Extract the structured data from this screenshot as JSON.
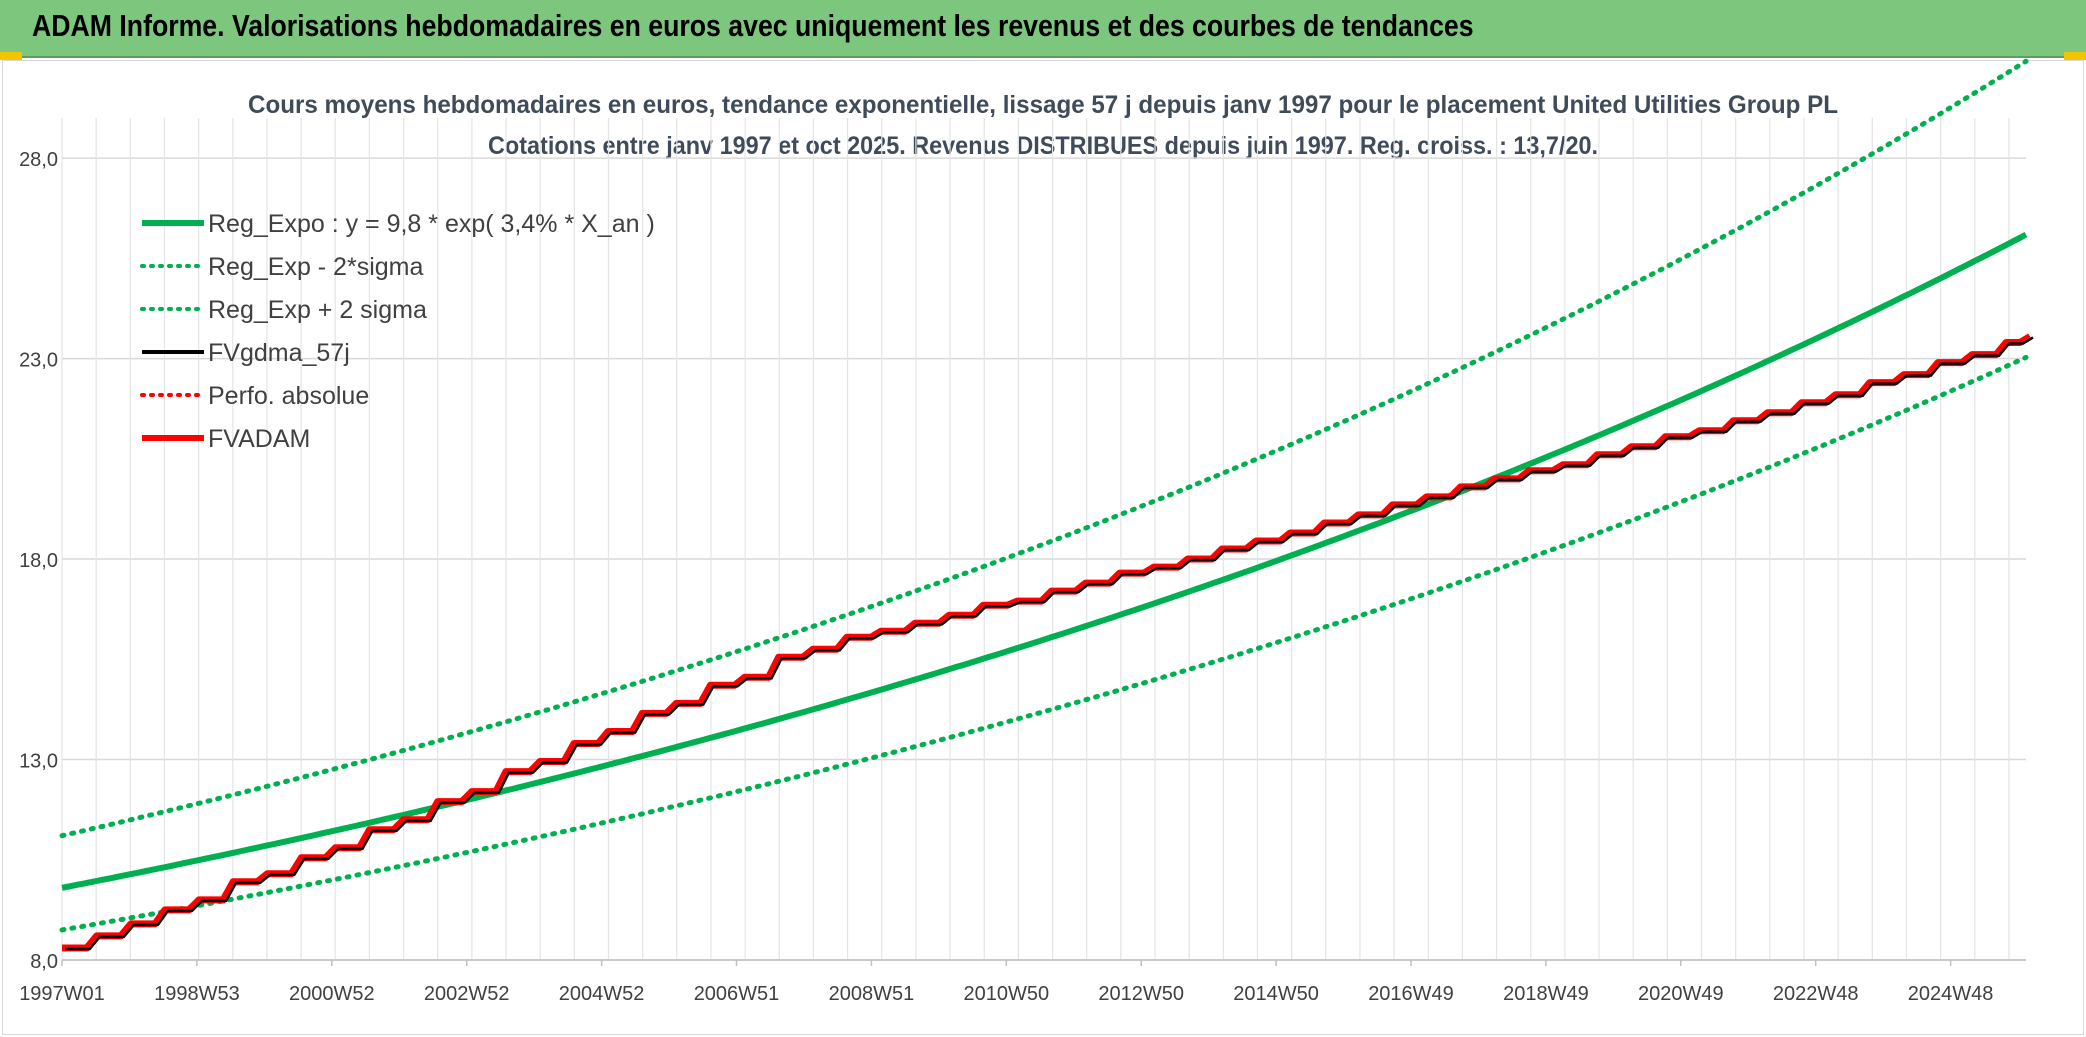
{
  "banner": {
    "title": "ADAM Informe. Valorisations hebdomadaires en euros avec uniquement les revenus et des courbes de tendances"
  },
  "colors": {
    "banner_bg": "#7dc67e",
    "trend_green": "#00b050",
    "fvgdma_black": "#000000",
    "adam_red": "#ff0000",
    "grid": "#d9d9d9"
  },
  "chart_data": {
    "type": "line",
    "title": "Cours moyens hebdomadaires en euros, tendance exponentielle, lissage 57 j depuis janv 1997 pour le placement United Utilities Group PL",
    "subtitle": "Cotations entre janv 1997 et oct 2025. Revenus DISTRIBUES depuis juin 1997. Reg. croiss. : 13,7/20.",
    "xlabel": "",
    "ylabel": "",
    "ylim": [
      8.0,
      29.0
    ],
    "y_ticks": [
      "8,0",
      "13,0",
      "18,0",
      "23,0",
      "28,0"
    ],
    "y_tick_values": [
      8,
      13,
      18,
      23,
      28
    ],
    "x_ticks": [
      "1997W01",
      "1998W53",
      "2000W52",
      "2002W52",
      "2004W52",
      "2006W51",
      "2008W51",
      "2010W50",
      "2012W50",
      "2014W50",
      "2016W49",
      "2018W49",
      "2020W49",
      "2022W48",
      "2024W48"
    ],
    "x_range_years": [
      1997.0,
      2025.8
    ],
    "grid": true,
    "legend_position": "top-left",
    "legend": [
      {
        "label": "Reg_Expo : y = 9,8 * exp( 3,4% *  X_an )",
        "style": "solid-thick",
        "color": "#00b050"
      },
      {
        "label": "Reg_Exp - 2*sigma",
        "style": "dotted",
        "color": "#00b050"
      },
      {
        "label": "Reg_Exp + 2 sigma",
        "style": "dotted",
        "color": "#00b050"
      },
      {
        "label": "FVgdma_57j",
        "style": "solid",
        "color": "#000000"
      },
      {
        "label": "Perfo. absolue",
        "style": "dotted",
        "color": "#ff0000"
      },
      {
        "label": "FVADAM",
        "style": "solid-thick",
        "color": "#ff0000"
      }
    ],
    "series": [
      {
        "name": "Reg_Expo : y = 9,8 * exp( 3,4% *  X_an )",
        "model": "exponential",
        "a": 9.8,
        "rate": 0.034
      },
      {
        "name": "Reg_Exp - 2*sigma",
        "model": "exponential",
        "a": 8.75,
        "rate": 0.0336
      },
      {
        "name": "Reg_Exp + 2 sigma",
        "model": "exponential",
        "a": 11.1,
        "rate": 0.035
      },
      {
        "name": "FVADAM",
        "x": [
          1997.0,
          1997.45,
          1997.95,
          1998.45,
          1998.95,
          1999.45,
          1999.95,
          2000.45,
          2000.95,
          2001.45,
          2001.95,
          2002.45,
          2002.95,
          2003.45,
          2003.95,
          2004.45,
          2004.95,
          2005.45,
          2005.95,
          2006.45,
          2006.95,
          2007.45,
          2007.95,
          2008.45,
          2008.95,
          2009.45,
          2009.95,
          2010.45,
          2010.95,
          2011.45,
          2011.95,
          2012.45,
          2012.95,
          2013.45,
          2013.95,
          2014.45,
          2014.95,
          2015.45,
          2015.95,
          2016.45,
          2016.95,
          2017.45,
          2017.95,
          2018.45,
          2018.95,
          2019.45,
          2019.95,
          2020.45,
          2020.95,
          2021.45,
          2021.95,
          2022.45,
          2022.95,
          2023.45,
          2023.95,
          2024.45,
          2024.95,
          2025.45,
          2025.8
        ],
        "y": [
          8.3,
          8.6,
          8.9,
          9.25,
          9.5,
          9.95,
          10.15,
          10.55,
          10.8,
          11.25,
          11.5,
          11.95,
          12.2,
          12.7,
          12.95,
          13.4,
          13.7,
          14.15,
          14.4,
          14.85,
          15.05,
          15.55,
          15.75,
          16.05,
          16.2,
          16.4,
          16.6,
          16.85,
          16.95,
          17.2,
          17.4,
          17.65,
          17.8,
          18.0,
          18.25,
          18.45,
          18.65,
          18.9,
          19.1,
          19.35,
          19.55,
          19.8,
          20.0,
          20.2,
          20.35,
          20.6,
          20.8,
          21.05,
          21.2,
          21.45,
          21.65,
          21.9,
          22.1,
          22.4,
          22.6,
          22.9,
          23.1,
          23.4,
          23.55
        ]
      },
      {
        "name": "FVgdma_57j",
        "note_shape": "smoothed FVADAM"
      },
      {
        "name": "Perfo. absolue",
        "note_shape": "close to FVADAM"
      }
    ]
  }
}
